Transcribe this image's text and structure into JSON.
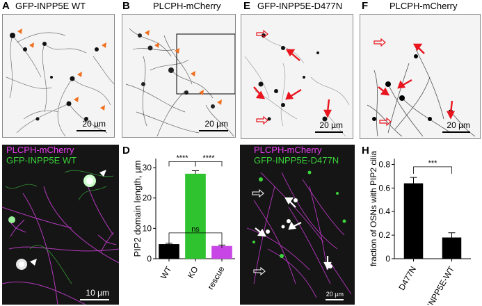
{
  "panels": {
    "A": {
      "letter": "A",
      "title": "GFP-INPP5E WT",
      "scale": "20 µm"
    },
    "B": {
      "letter": "B",
      "title": "PLCPH-mCherry",
      "scale": "20 µm"
    },
    "C": {
      "letter": "C",
      "title_line1": "PLCPH-mCherry",
      "title_line2": "GFP-INPP5E WT",
      "scale": "10 µm"
    },
    "D": {
      "letter": "D"
    },
    "E": {
      "letter": "E",
      "title": "GFP-INPP5E-D477N",
      "scale": "20 µm"
    },
    "F": {
      "letter": "F",
      "title": "PLCPH-mCherry",
      "scale": "20 µm"
    },
    "G": {
      "letter": "G",
      "title_line1": "PLCPH-mCherry",
      "title_line2": "GFP-INPP5E-D477N",
      "scale": "20 µm"
    },
    "H": {
      "letter": "H"
    }
  },
  "colors": {
    "magenta": "#e83ef0",
    "green": "#3ad13a",
    "orange": "#f07020",
    "red": "#e8141e",
    "black": "#000000"
  },
  "chart_data": [
    {
      "panel": "D",
      "type": "bar",
      "categories": [
        "WT",
        "KO",
        "rescue"
      ],
      "values": [
        4.8,
        28.0,
        4.2
      ],
      "errors": [
        0.3,
        1.0,
        0.3
      ],
      "colors": [
        "#000000",
        "#2fc32f",
        "#c846e6"
      ],
      "ylabel": "PIP2 domain length, µm",
      "ylim": [
        0,
        33
      ],
      "yticks": [
        0,
        10,
        20,
        30
      ],
      "annotations": [
        {
          "from": "WT",
          "to": "KO",
          "text": "****"
        },
        {
          "from": "KO",
          "to": "rescue",
          "text": "****"
        },
        {
          "from": "WT",
          "to": "rescue",
          "text": "ns"
        }
      ]
    },
    {
      "panel": "H",
      "type": "bar",
      "categories": [
        "D477N",
        "INPP5E-WT"
      ],
      "values": [
        0.64,
        0.18
      ],
      "errors": [
        0.05,
        0.04
      ],
      "colors": [
        "#000000",
        "#000000"
      ],
      "ylabel": "fraction of OSNs with PIP2 cilia",
      "ylim": [
        0,
        0.85
      ],
      "yticks": [
        0,
        0.2,
        0.4,
        0.6,
        0.8
      ],
      "annotations": [
        {
          "from": "D477N",
          "to": "INPP5E-WT",
          "text": "***"
        }
      ]
    }
  ]
}
